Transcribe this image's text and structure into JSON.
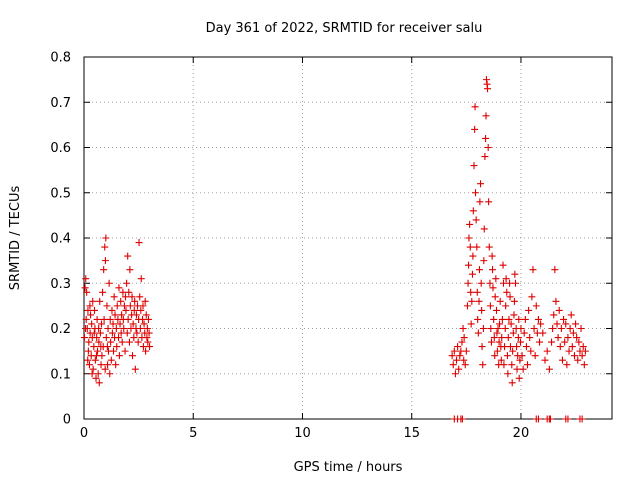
{
  "chart_data": {
    "type": "scatter",
    "title": "Day 361 of 2022, SRMTID for receiver salu",
    "xlabel": "GPS time / hours",
    "ylabel": "SRMTID / TECUs",
    "xlim": [
      0,
      24.167
    ],
    "ylim": [
      0,
      0.8
    ],
    "x_ticks": [
      0,
      5,
      10,
      15,
      20
    ],
    "y_ticks": [
      0,
      0.1,
      0.2,
      0.3,
      0.4,
      0.5,
      0.6,
      0.7,
      0.8
    ],
    "x_tick_labels": [
      "0",
      "5",
      "10",
      "15",
      "20"
    ],
    "y_tick_labels": [
      "0",
      "0.1",
      "0.2",
      "0.3",
      "0.4",
      "0.5",
      "0.6",
      "0.7",
      "0.8"
    ],
    "grid": true,
    "legend": "none",
    "marker": "+",
    "series_color": "#dd0000",
    "series": [
      {
        "name": "SRMTID",
        "points": [
          [
            0.02,
            0.18
          ],
          [
            0.05,
            0.29
          ],
          [
            0.08,
            0.31
          ],
          [
            0.1,
            0.22
          ],
          [
            0.12,
            0.28
          ],
          [
            0.15,
            0.2
          ],
          [
            0.18,
            0.24
          ],
          [
            0.2,
            0.15
          ],
          [
            0.22,
            0.17
          ],
          [
            0.25,
            0.12
          ],
          [
            0.28,
            0.19
          ],
          [
            0.3,
            0.23
          ],
          [
            0.33,
            0.14
          ],
          [
            0.35,
            0.21
          ],
          [
            0.38,
            0.18
          ],
          [
            0.4,
            0.26
          ],
          [
            0.42,
            0.11
          ],
          [
            0.45,
            0.16
          ],
          [
            0.48,
            0.24
          ],
          [
            0.5,
            0.2
          ],
          [
            0.52,
            0.13
          ],
          [
            0.55,
            0.09
          ],
          [
            0.58,
            0.18
          ],
          [
            0.6,
            0.22
          ],
          [
            0.62,
            0.15
          ],
          [
            0.65,
            0.1
          ],
          [
            0.68,
            0.17
          ],
          [
            0.7,
            0.08
          ],
          [
            0.72,
            0.26
          ],
          [
            0.75,
            0.19
          ],
          [
            0.78,
            0.12
          ],
          [
            0.8,
            0.21
          ],
          [
            0.82,
            0.14
          ],
          [
            0.85,
            0.28
          ],
          [
            0.88,
            0.16
          ],
          [
            0.9,
            0.33
          ],
          [
            0.92,
            0.22
          ],
          [
            0.95,
            0.38
          ],
          [
            0.98,
            0.35
          ],
          [
            1.0,
            0.4
          ],
          [
            1.02,
            0.18
          ],
          [
            1.05,
            0.25
          ],
          [
            1.08,
            0.12
          ],
          [
            1.1,
            0.2
          ],
          [
            1.12,
            0.15
          ],
          [
            1.15,
            0.3
          ],
          [
            1.18,
            0.1
          ],
          [
            1.2,
            0.22
          ],
          [
            1.22,
            0.17
          ],
          [
            1.25,
            0.13
          ],
          [
            1.28,
            0.24
          ],
          [
            1.3,
            0.19
          ],
          [
            1.33,
            0.21
          ],
          [
            1.35,
            0.15
          ],
          [
            1.38,
            0.27
          ],
          [
            1.4,
            0.18
          ],
          [
            1.42,
            0.23
          ],
          [
            1.45,
            0.12
          ],
          [
            1.48,
            0.2
          ],
          [
            1.5,
            0.16
          ],
          [
            1.52,
            0.25
          ],
          [
            1.55,
            0.22
          ],
          [
            1.58,
            0.18
          ],
          [
            1.6,
            0.29
          ],
          [
            1.62,
            0.14
          ],
          [
            1.65,
            0.21
          ],
          [
            1.68,
            0.26
          ],
          [
            1.7,
            0.19
          ],
          [
            1.72,
            0.23
          ],
          [
            1.75,
            0.17
          ],
          [
            1.78,
            0.28
          ],
          [
            1.8,
            0.22
          ],
          [
            1.82,
            0.2
          ],
          [
            1.85,
            0.25
          ],
          [
            1.88,
            0.15
          ],
          [
            1.9,
            0.27
          ],
          [
            1.92,
            0.24
          ],
          [
            1.95,
            0.3
          ],
          [
            1.98,
            0.19
          ],
          [
            2.0,
            0.36
          ],
          [
            2.02,
            0.22
          ],
          [
            2.05,
            0.28
          ],
          [
            2.08,
            0.17
          ],
          [
            2.1,
            0.33
          ],
          [
            2.12,
            0.25
          ],
          [
            2.15,
            0.2
          ],
          [
            2.18,
            0.23
          ],
          [
            2.2,
            0.27
          ],
          [
            2.22,
            0.14
          ],
          [
            2.25,
            0.21
          ],
          [
            2.28,
            0.18
          ],
          [
            2.3,
            0.24
          ],
          [
            2.32,
            0.26
          ],
          [
            2.35,
            0.11
          ],
          [
            2.38,
            0.2
          ],
          [
            2.4,
            0.23
          ],
          [
            2.42,
            0.19
          ],
          [
            2.45,
            0.25
          ],
          [
            2.48,
            0.17
          ],
          [
            2.5,
            0.22
          ],
          [
            2.52,
            0.39
          ],
          [
            2.55,
            0.27
          ],
          [
            2.58,
            0.2
          ],
          [
            2.6,
            0.24
          ],
          [
            2.62,
            0.31
          ],
          [
            2.65,
            0.18
          ],
          [
            2.68,
            0.22
          ],
          [
            2.7,
            0.25
          ],
          [
            2.72,
            0.16
          ],
          [
            2.75,
            0.21
          ],
          [
            2.78,
            0.19
          ],
          [
            2.8,
            0.26
          ],
          [
            2.82,
            0.15
          ],
          [
            2.85,
            0.23
          ],
          [
            2.88,
            0.18
          ],
          [
            2.9,
            0.2
          ],
          [
            2.92,
            0.17
          ],
          [
            2.95,
            0.22
          ],
          [
            2.98,
            0.19
          ],
          [
            3.0,
            0.16
          ],
          [
            0.07,
            0.2
          ],
          [
            0.17,
            0.13
          ],
          [
            0.27,
            0.25
          ],
          [
            0.37,
            0.1
          ],
          [
            0.47,
            0.19
          ],
          [
            0.57,
            0.14
          ],
          [
            0.67,
            0.2
          ],
          [
            0.77,
            0.16
          ],
          [
            0.97,
            0.11
          ],
          [
            1.07,
            0.16
          ],
          [
            16.85,
            0.14
          ],
          [
            16.9,
            0.12
          ],
          [
            16.95,
            0.15
          ],
          [
            17.0,
            0.1
          ],
          [
            17.05,
            0.13
          ],
          [
            17.1,
            0.16
          ],
          [
            17.15,
            0.11
          ],
          [
            17.2,
            0.14
          ],
          [
            17.25,
            0.15
          ],
          [
            17.3,
            0.17
          ],
          [
            17.35,
            0.2
          ],
          [
            17.38,
            0.13
          ],
          [
            17.4,
            0.18
          ],
          [
            17.45,
            0.12
          ],
          [
            17.5,
            0.15
          ],
          [
            17.55,
            0.25
          ],
          [
            17.58,
            0.3
          ],
          [
            17.6,
            0.34
          ],
          [
            17.62,
            0.4
          ],
          [
            17.65,
            0.43
          ],
          [
            17.68,
            0.38
          ],
          [
            17.7,
            0.28
          ],
          [
            17.72,
            0.21
          ],
          [
            17.75,
            0.26
          ],
          [
            17.78,
            0.32
          ],
          [
            17.8,
            0.36
          ],
          [
            17.82,
            0.46
          ],
          [
            17.85,
            0.56
          ],
          [
            17.88,
            0.64
          ],
          [
            17.9,
            0.69
          ],
          [
            17.92,
            0.5
          ],
          [
            17.95,
            0.44
          ],
          [
            17.98,
            0.38
          ],
          [
            18.0,
            0.28
          ],
          [
            18.02,
            0.22
          ],
          [
            18.05,
            0.19
          ],
          [
            18.08,
            0.26
          ],
          [
            18.1,
            0.33
          ],
          [
            18.12,
            0.48
          ],
          [
            18.15,
            0.52
          ],
          [
            18.18,
            0.3
          ],
          [
            18.2,
            0.24
          ],
          [
            18.22,
            0.16
          ],
          [
            18.25,
            0.12
          ],
          [
            18.28,
            0.2
          ],
          [
            18.3,
            0.35
          ],
          [
            18.32,
            0.42
          ],
          [
            18.35,
            0.58
          ],
          [
            18.38,
            0.62
          ],
          [
            18.4,
            0.67
          ],
          [
            18.42,
            0.75
          ],
          [
            18.45,
            0.74
          ],
          [
            18.47,
            0.73
          ],
          [
            18.5,
            0.6
          ],
          [
            18.52,
            0.48
          ],
          [
            18.55,
            0.38
          ],
          [
            18.58,
            0.3
          ],
          [
            18.6,
            0.25
          ],
          [
            18.62,
            0.2
          ],
          [
            18.65,
            0.17
          ],
          [
            18.68,
            0.36
          ],
          [
            18.7,
            0.33
          ],
          [
            18.72,
            0.29
          ],
          [
            18.75,
            0.22
          ],
          [
            18.78,
            0.18
          ],
          [
            18.8,
            0.14
          ],
          [
            18.82,
            0.27
          ],
          [
            18.85,
            0.31
          ],
          [
            18.88,
            0.24
          ],
          [
            18.9,
            0.19
          ],
          [
            18.92,
            0.15
          ],
          [
            18.95,
            0.2
          ],
          [
            18.98,
            0.12
          ],
          [
            19.0,
            0.17
          ],
          [
            19.02,
            0.21
          ],
          [
            19.05,
            0.26
          ],
          [
            19.08,
            0.16
          ],
          [
            19.1,
            0.13
          ],
          [
            19.12,
            0.18
          ],
          [
            19.15,
            0.22
          ],
          [
            19.18,
            0.34
          ],
          [
            19.2,
            0.3
          ],
          [
            19.22,
            0.12
          ],
          [
            19.25,
            0.16
          ],
          [
            19.28,
            0.2
          ],
          [
            19.3,
            0.25
          ],
          [
            19.32,
            0.31
          ],
          [
            19.35,
            0.28
          ],
          [
            19.38,
            0.14
          ],
          [
            19.4,
            0.1
          ],
          [
            19.42,
            0.18
          ],
          [
            19.45,
            0.22
          ],
          [
            19.48,
            0.3
          ],
          [
            19.5,
            0.27
          ],
          [
            19.52,
            0.16
          ],
          [
            19.55,
            0.21
          ],
          [
            19.58,
            0.12
          ],
          [
            19.6,
            0.08
          ],
          [
            19.62,
            0.15
          ],
          [
            19.65,
            0.19
          ],
          [
            19.68,
            0.23
          ],
          [
            19.7,
            0.26
          ],
          [
            19.72,
            0.32
          ],
          [
            19.75,
            0.3
          ],
          [
            19.78,
            0.2
          ],
          [
            19.8,
            0.16
          ],
          [
            19.82,
            0.11
          ],
          [
            19.85,
            0.14
          ],
          [
            19.88,
            0.18
          ],
          [
            19.9,
            0.22
          ],
          [
            19.92,
            0.09
          ],
          [
            19.95,
            0.13
          ],
          [
            19.98,
            0.17
          ],
          [
            20.0,
            0.2
          ],
          [
            20.05,
            0.14
          ],
          [
            20.1,
            0.11
          ],
          [
            20.15,
            0.19
          ],
          [
            20.2,
            0.22
          ],
          [
            20.25,
            0.16
          ],
          [
            20.3,
            0.12
          ],
          [
            20.35,
            0.24
          ],
          [
            20.4,
            0.18
          ],
          [
            20.45,
            0.15
          ],
          [
            20.5,
            0.27
          ],
          [
            20.55,
            0.33
          ],
          [
            20.6,
            0.2
          ],
          [
            20.65,
            0.14
          ],
          [
            20.7,
            0.25
          ],
          [
            20.75,
            0.19
          ],
          [
            20.8,
            0.22
          ],
          [
            20.85,
            0.17
          ],
          [
            20.9,
            0.21
          ],
          [
            21.0,
            0.19
          ],
          [
            21.1,
            0.13
          ],
          [
            21.2,
            0.15
          ],
          [
            21.3,
            0.11
          ],
          [
            21.4,
            0.17
          ],
          [
            21.45,
            0.2
          ],
          [
            21.5,
            0.23
          ],
          [
            21.55,
            0.33
          ],
          [
            21.6,
            0.26
          ],
          [
            21.65,
            0.21
          ],
          [
            21.7,
            0.18
          ],
          [
            21.75,
            0.24
          ],
          [
            21.8,
            0.16
          ],
          [
            21.85,
            0.2
          ],
          [
            21.9,
            0.13
          ],
          [
            21.95,
            0.22
          ],
          [
            22.0,
            0.17
          ],
          [
            22.05,
            0.21
          ],
          [
            22.1,
            0.12
          ],
          [
            22.15,
            0.18
          ],
          [
            22.2,
            0.15
          ],
          [
            22.25,
            0.2
          ],
          [
            22.3,
            0.23
          ],
          [
            22.35,
            0.16
          ],
          [
            22.4,
            0.19
          ],
          [
            22.45,
            0.14
          ],
          [
            22.5,
            0.21
          ],
          [
            22.55,
            0.18
          ],
          [
            22.6,
            0.13
          ],
          [
            22.65,
            0.17
          ],
          [
            22.7,
            0.15
          ],
          [
            22.75,
            0.2
          ],
          [
            22.8,
            0.14
          ],
          [
            22.85,
            0.16
          ],
          [
            22.9,
            0.12
          ],
          [
            22.95,
            0.15
          ],
          [
            16.95,
            0.0
          ],
          [
            17.1,
            0.0
          ],
          [
            17.25,
            0.0
          ],
          [
            17.32,
            0.0
          ],
          [
            20.7,
            0.0
          ],
          [
            20.8,
            0.0
          ],
          [
            21.2,
            0.0
          ],
          [
            21.3,
            0.0
          ],
          [
            21.35,
            0.0
          ],
          [
            22.05,
            0.0
          ],
          [
            22.15,
            0.0
          ],
          [
            22.7,
            0.0
          ],
          [
            22.8,
            0.0
          ]
        ]
      }
    ]
  }
}
